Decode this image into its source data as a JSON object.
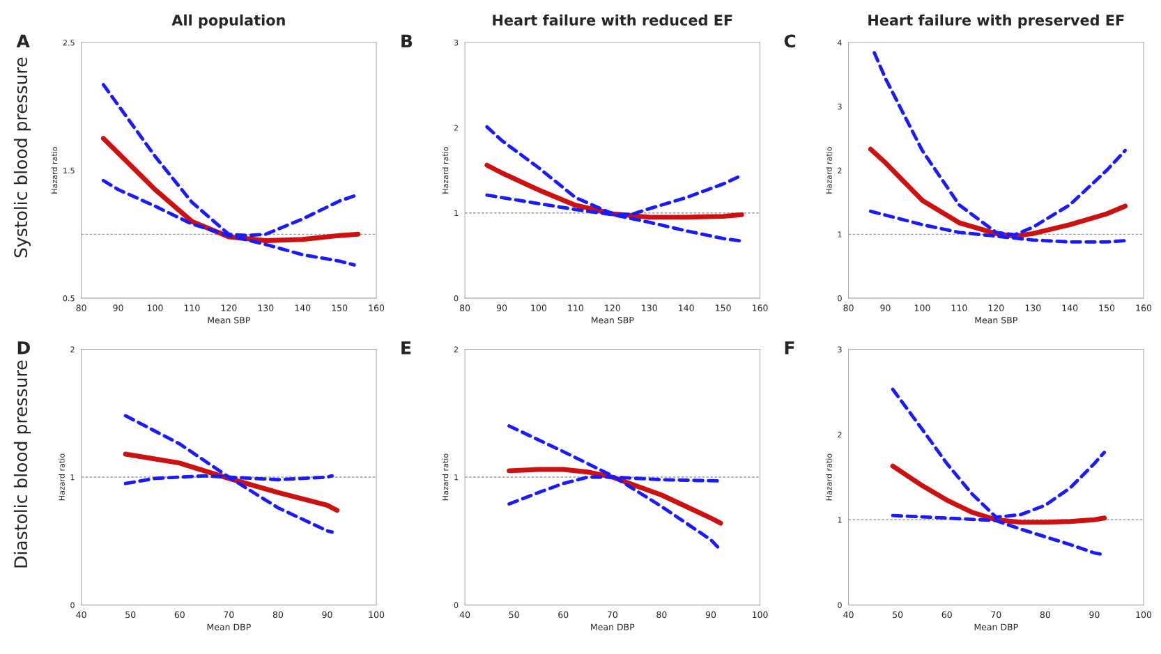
{
  "chart_data": [
    {
      "type": "line",
      "title": "All population",
      "xlabel": "Mean SBP",
      "ylabel": "Hazard ratio",
      "annotations": [
        "A",
        "Systolic blood pressure"
      ],
      "xlim": [
        80,
        160
      ],
      "xticks": [
        80,
        90,
        100,
        110,
        120,
        130,
        140,
        150,
        160
      ],
      "ylim": [
        0.5,
        2.5
      ],
      "yticks": [
        0.5,
        1.5,
        2.5
      ],
      "ref_lines": [
        {
          "axis": "y",
          "value": 1,
          "color": "#999999",
          "line_style": "dashed"
        }
      ],
      "series": [
        {
          "color": "#cc1111",
          "line_style": "solid",
          "x": [
            86,
            100,
            110,
            120,
            130,
            140,
            150,
            155
          ],
          "values": [
            1.75,
            1.35,
            1.1,
            0.98,
            0.95,
            0.96,
            0.99,
            1.0
          ]
        },
        {
          "color": "#1a1aff",
          "line_style": "dashed",
          "x": [
            86,
            90,
            100,
            110,
            120,
            125,
            130,
            140,
            150,
            154
          ],
          "values": [
            2.17,
            2.01,
            1.61,
            1.25,
            1.0,
            0.99,
            1.0,
            1.12,
            1.26,
            1.3
          ]
        },
        {
          "color": "#1a1aff",
          "line_style": "dashed",
          "x": [
            86,
            90,
            100,
            110,
            120,
            130,
            140,
            150,
            154
          ],
          "values": [
            1.42,
            1.35,
            1.22,
            1.08,
            0.99,
            0.92,
            0.84,
            0.79,
            0.76
          ]
        }
      ]
    },
    {
      "type": "line",
      "title": "Heart failure with reduced EF",
      "xlabel": "Mean SBP",
      "ylabel": "Hazard ratio",
      "annotations": [
        "B"
      ],
      "xlim": [
        80,
        160
      ],
      "xticks": [
        80,
        90,
        100,
        110,
        120,
        130,
        140,
        150,
        160
      ],
      "ylim": [
        0,
        3
      ],
      "yticks": [
        0,
        1,
        2,
        3
      ],
      "ref_lines": [
        {
          "axis": "y",
          "value": 1,
          "color": "#999999",
          "line_style": "dashed"
        }
      ],
      "series": [
        {
          "color": "#cc1111",
          "line_style": "solid",
          "x": [
            86,
            90,
            100,
            110,
            120,
            130,
            140,
            150,
            155
          ],
          "values": [
            1.56,
            1.47,
            1.27,
            1.09,
            0.99,
            0.95,
            0.95,
            0.96,
            0.98
          ]
        },
        {
          "color": "#1a1aff",
          "line_style": "dashed",
          "x": [
            86,
            90,
            100,
            110,
            120,
            125,
            130,
            140,
            150,
            155
          ],
          "values": [
            2.01,
            1.85,
            1.53,
            1.18,
            0.99,
            0.98,
            1.05,
            1.18,
            1.34,
            1.44
          ]
        },
        {
          "color": "#1a1aff",
          "line_style": "dashed",
          "x": [
            86,
            90,
            100,
            110,
            120,
            130,
            140,
            150,
            155
          ],
          "values": [
            1.21,
            1.18,
            1.11,
            1.04,
            0.98,
            0.89,
            0.79,
            0.7,
            0.67
          ]
        }
      ]
    },
    {
      "type": "line",
      "title": "Heart failure with preserved EF",
      "xlabel": "Mean SBP",
      "ylabel": "Hazard ratio",
      "annotations": [
        "C"
      ],
      "xlim": [
        80,
        160
      ],
      "xticks": [
        80,
        90,
        100,
        110,
        120,
        130,
        140,
        150,
        160
      ],
      "ylim": [
        0,
        4
      ],
      "yticks": [
        0,
        1,
        2,
        3,
        4
      ],
      "ref_lines": [
        {
          "axis": "y",
          "value": 1,
          "color": "#999999",
          "line_style": "dashed"
        }
      ],
      "series": [
        {
          "color": "#cc1111",
          "line_style": "solid",
          "x": [
            86,
            90,
            100,
            110,
            120,
            125,
            130,
            140,
            150,
            155
          ],
          "values": [
            2.33,
            2.12,
            1.53,
            1.18,
            1.01,
            0.97,
            1.01,
            1.15,
            1.32,
            1.44
          ]
        },
        {
          "color": "#1a1aff",
          "line_style": "dashed",
          "x": [
            87,
            90,
            100,
            110,
            120,
            125,
            130,
            140,
            150,
            155
          ],
          "values": [
            3.84,
            3.44,
            2.31,
            1.46,
            1.03,
            0.99,
            1.11,
            1.46,
            2.0,
            2.31
          ]
        },
        {
          "color": "#1a1aff",
          "line_style": "dashed",
          "x": [
            86,
            90,
            100,
            110,
            120,
            130,
            140,
            150,
            155
          ],
          "values": [
            1.36,
            1.3,
            1.15,
            1.03,
            0.97,
            0.91,
            0.88,
            0.88,
            0.9
          ]
        }
      ]
    },
    {
      "type": "line",
      "xlabel": "Mean DBP",
      "ylabel": "Hazard ratio",
      "annotations": [
        "D",
        "Diastolic blood pressure"
      ],
      "xlim": [
        40,
        100
      ],
      "xticks": [
        40,
        50,
        60,
        70,
        80,
        90,
        100
      ],
      "ylim": [
        0,
        2
      ],
      "yticks": [
        0,
        1,
        2
      ],
      "ref_lines": [
        {
          "axis": "y",
          "value": 1,
          "color": "#999999",
          "line_style": "dashed"
        }
      ],
      "series": [
        {
          "color": "#cc1111",
          "line_style": "solid",
          "x": [
            49,
            60,
            70,
            80,
            90,
            92
          ],
          "values": [
            1.18,
            1.11,
            0.99,
            0.88,
            0.78,
            0.74
          ]
        },
        {
          "color": "#1a1aff",
          "line_style": "dashed",
          "x": [
            49,
            60,
            70,
            80,
            90,
            91
          ],
          "values": [
            1.48,
            1.26,
            1.0,
            0.76,
            0.58,
            0.57
          ]
        },
        {
          "color": "#1a1aff",
          "line_style": "dashed",
          "x": [
            49,
            55,
            60,
            65,
            70,
            80,
            85,
            90,
            91
          ],
          "values": [
            0.95,
            0.99,
            1.0,
            1.01,
            1.0,
            0.98,
            0.99,
            1.0,
            1.01
          ]
        }
      ]
    },
    {
      "type": "line",
      "xlabel": "Mean DBP",
      "ylabel": "Hazard ratio",
      "annotations": [
        "E"
      ],
      "xlim": [
        40,
        100
      ],
      "xticks": [
        40,
        50,
        60,
        70,
        80,
        90,
        100
      ],
      "ylim": [
        0,
        2
      ],
      "yticks": [
        0,
        1,
        2
      ],
      "ref_lines": [
        {
          "axis": "y",
          "value": 1,
          "color": "#999999",
          "line_style": "dashed"
        }
      ],
      "series": [
        {
          "color": "#cc1111",
          "line_style": "solid",
          "x": [
            49,
            55,
            60,
            65,
            70,
            75,
            80,
            85,
            90,
            92
          ],
          "values": [
            1.05,
            1.06,
            1.06,
            1.04,
            1.0,
            0.93,
            0.86,
            0.77,
            0.68,
            0.64
          ]
        },
        {
          "color": "#1a1aff",
          "line_style": "dashed",
          "x": [
            49,
            60,
            70,
            80,
            90,
            92
          ],
          "values": [
            1.4,
            1.2,
            1.01,
            0.77,
            0.51,
            0.43
          ]
        },
        {
          "color": "#1a1aff",
          "line_style": "dashed",
          "x": [
            49,
            55,
            60,
            65,
            70,
            80,
            92
          ],
          "values": [
            0.79,
            0.88,
            0.95,
            1.0,
            1.0,
            0.98,
            0.97
          ]
        }
      ]
    },
    {
      "type": "line",
      "xlabel": "Mean DBP",
      "ylabel": "Hazard ratio",
      "annotations": [
        "F"
      ],
      "xlim": [
        40,
        100
      ],
      "xticks": [
        40,
        50,
        60,
        70,
        80,
        90,
        100
      ],
      "ylim": [
        0,
        3
      ],
      "yticks": [
        0,
        1,
        2,
        3
      ],
      "ref_lines": [
        {
          "axis": "y",
          "value": 1,
          "color": "#999999",
          "line_style": "dashed"
        }
      ],
      "series": [
        {
          "color": "#cc1111",
          "line_style": "solid",
          "x": [
            49,
            55,
            60,
            65,
            70,
            75,
            80,
            85,
            90,
            92
          ],
          "values": [
            1.63,
            1.4,
            1.23,
            1.09,
            1.0,
            0.97,
            0.97,
            0.98,
            1.0,
            1.02
          ]
        },
        {
          "color": "#1a1aff",
          "line_style": "dashed",
          "x": [
            49,
            55,
            60,
            65,
            70,
            75,
            80,
            85,
            90,
            92
          ],
          "values": [
            2.53,
            2.06,
            1.66,
            1.31,
            1.03,
            1.06,
            1.17,
            1.37,
            1.66,
            1.79
          ]
        },
        {
          "color": "#1a1aff",
          "line_style": "dashed",
          "x": [
            49,
            60,
            70,
            75,
            80,
            85,
            90,
            92
          ],
          "values": [
            1.05,
            1.02,
            0.99,
            0.89,
            0.8,
            0.71,
            0.61,
            0.59
          ]
        }
      ]
    }
  ]
}
